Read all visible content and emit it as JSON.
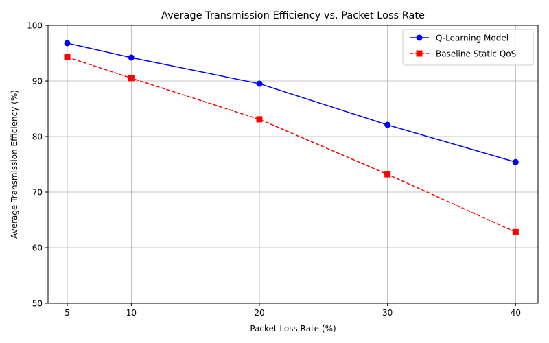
{
  "chart_data": {
    "type": "line",
    "title": "Average Transmission Efficiency vs. Packet Loss Rate",
    "xlabel": "Packet Loss Rate (%)",
    "ylabel": "Average Transmission Efficiency (%)",
    "x": [
      5,
      10,
      20,
      30,
      40
    ],
    "xlim": [
      3.5,
      41.75
    ],
    "ylim": [
      50,
      100
    ],
    "xticks": [
      5,
      10,
      20,
      30,
      40
    ],
    "yticks": [
      50,
      60,
      70,
      80,
      90,
      100
    ],
    "grid": true,
    "legend_position": "top-right",
    "series": [
      {
        "name": "Q-Learning Model",
        "values": [
          96.8,
          94.2,
          89.5,
          82.1,
          75.4
        ],
        "color": "#0000ff",
        "line_style": "solid",
        "marker": "circle"
      },
      {
        "name": "Baseline Static QoS",
        "values": [
          94.3,
          90.5,
          83.1,
          73.2,
          62.8
        ],
        "color": "#ff0000",
        "line_style": "dashed",
        "marker": "square"
      }
    ]
  }
}
